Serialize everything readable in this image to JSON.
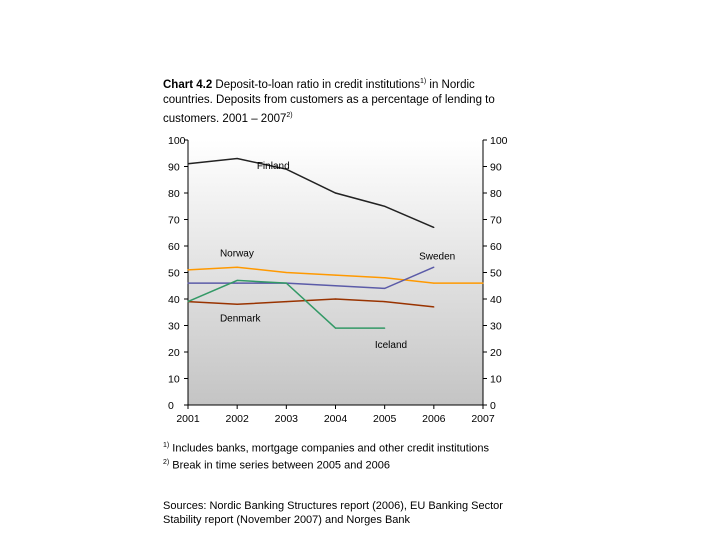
{
  "title": {
    "lead": "Chart 4.2",
    "line1": "Deposit-to-loan ratio in credit institutions",
    "sup1": "1)",
    "line1b": " in Nordic countries. Deposits from customers as a percentage of lending to customers. 2001 – 2007",
    "sup2": "2)"
  },
  "notes": {
    "n1_mark": "1)",
    "n1_text": " Includes banks, mortgage companies and other credit institutions",
    "n2_mark": "2)",
    "n2_text": " Break in time series between 2005 and 2006"
  },
  "sources": "Sources: Nordic Banking Structures report (2006), EU Banking Sector Stability report (November 2007) and Norges Bank",
  "chart_data": {
    "type": "line",
    "x": [
      "2001",
      "2002",
      "2003",
      "2004",
      "2005",
      "2006",
      "2007"
    ],
    "ylim": [
      0,
      100
    ],
    "yticks": [
      0,
      10,
      20,
      30,
      40,
      50,
      60,
      70,
      80,
      90,
      100
    ],
    "grid": false,
    "series": [
      {
        "name": "Finland",
        "color": "#222222",
        "x": [
          2001,
          2002,
          2003,
          2004,
          2005,
          2006
        ],
        "values": [
          91,
          93,
          89,
          80,
          75,
          67
        ]
      },
      {
        "name": "Norway",
        "color": "#ff9900",
        "x": [
          2001,
          2002,
          2003,
          2004,
          2005,
          2006,
          2007
        ],
        "values": [
          51,
          52,
          50,
          49,
          48,
          46,
          46
        ]
      },
      {
        "name": "Sweden",
        "color": "#5b5ba8",
        "x": [
          2001,
          2002,
          2003,
          2004,
          2005,
          2006
        ],
        "values": [
          46,
          46,
          46,
          45,
          44,
          52
        ]
      },
      {
        "name": "Denmark",
        "color": "#993300",
        "x": [
          2001,
          2002,
          2003,
          2004,
          2005,
          2006
        ],
        "values": [
          39,
          38,
          39,
          40,
          39,
          37
        ]
      },
      {
        "name": "Iceland",
        "color": "#339966",
        "x": [
          2001,
          2002,
          2003,
          2004,
          2005
        ],
        "values": [
          39,
          47,
          46,
          29,
          29
        ]
      }
    ],
    "labels": [
      {
        "series": "Finland",
        "at": [
          2002.4,
          89
        ]
      },
      {
        "series": "Norway",
        "at": [
          2001.65,
          56
        ]
      },
      {
        "series": "Sweden",
        "at": [
          2005.7,
          55
        ]
      },
      {
        "series": "Denmark",
        "at": [
          2001.65,
          31.5
        ]
      },
      {
        "series": "Iceland",
        "at": [
          2004.8,
          21.5
        ]
      }
    ]
  }
}
